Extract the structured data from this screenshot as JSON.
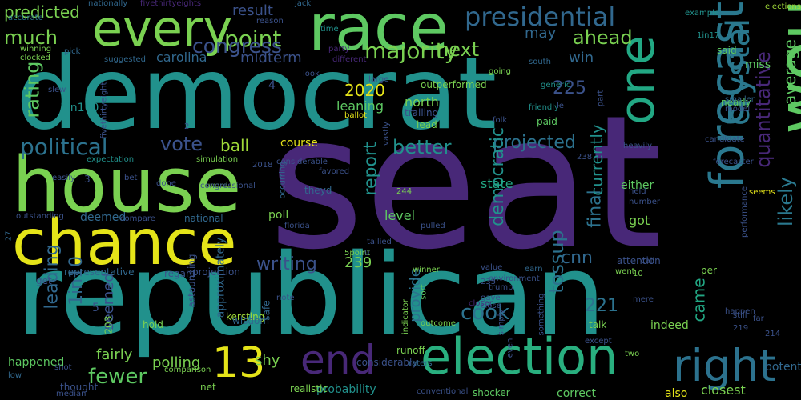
{
  "words": [
    {
      "text": "seat",
      "color": "#482878"
    },
    {
      "text": "republican",
      "color": "#21918c"
    },
    {
      "text": "democrat",
      "color": "#21918c"
    },
    {
      "text": "house",
      "color": "#7ad151"
    },
    {
      "text": "chance",
      "color": "#e5e419"
    },
    {
      "text": "would",
      "color": "#5ec962"
    },
    {
      "text": "race",
      "color": "#5ec962"
    },
    {
      "text": "election",
      "color": "#29af7f"
    },
    {
      "text": "every",
      "color": "#7ad151"
    },
    {
      "text": "forecast",
      "color": "#2a788e"
    },
    {
      "text": "one",
      "color": "#22a884"
    },
    {
      "text": "right",
      "color": "#2c728e"
    },
    {
      "text": "end",
      "color": "#482878"
    },
    {
      "text": "13",
      "color": "#e5e419"
    },
    {
      "text": "presidential",
      "color": "#31688e"
    },
    {
      "text": "crystal",
      "color": "#2a788e"
    },
    {
      "text": "point",
      "color": "#7ad151"
    },
    {
      "text": "majority",
      "color": "#7ad151"
    },
    {
      "text": "congress",
      "color": "#3b528b"
    },
    {
      "text": "ahead",
      "color": "#7ad151"
    },
    {
      "text": "next",
      "color": "#7ad151"
    },
    {
      "text": "much",
      "color": "#7ad151"
    },
    {
      "text": "political",
      "color": "#2c728e"
    },
    {
      "text": "vote",
      "color": "#3b528b"
    },
    {
      "text": "ball",
      "color": "#a0da39"
    },
    {
      "text": "better",
      "color": "#21918c"
    },
    {
      "text": "projected",
      "color": "#2c728e"
    },
    {
      "text": "quantitative",
      "color": "#482878"
    },
    {
      "text": "report",
      "color": "#21918c"
    },
    {
      "text": "democratic",
      "color": "#21918c"
    },
    {
      "text": "cook",
      "color": "#2c728e"
    },
    {
      "text": "tossup",
      "color": "#2c728e"
    },
    {
      "text": "writing",
      "color": "#3b528b"
    },
    {
      "text": "likely",
      "color": "#2a788e"
    },
    {
      "text": "came",
      "color": "#22a884"
    },
    {
      "text": "fewer",
      "color": "#5ec962"
    },
    {
      "text": "leading",
      "color": "#31688e"
    },
    {
      "text": "1in10",
      "color": "#31688e"
    },
    {
      "text": "rating",
      "color": "#5ec962"
    },
    {
      "text": "225",
      "color": "#3b528b"
    },
    {
      "text": "221",
      "color": "#2c728e"
    },
    {
      "text": "2020",
      "color": "#e5e419"
    },
    {
      "text": "cnn",
      "color": "#31688e"
    },
    {
      "text": "final",
      "color": "#2c728e"
    },
    {
      "text": "currently",
      "color": "#21918c"
    },
    {
      "text": "average",
      "color": "#5ec962"
    },
    {
      "text": "predicted",
      "color": "#7ad151"
    },
    {
      "text": "midterm",
      "color": "#3b528b"
    },
    {
      "text": "carolina",
      "color": "#31688e"
    },
    {
      "text": "result",
      "color": "#3b528b"
    },
    {
      "text": "may",
      "color": "#31688e"
    },
    {
      "text": "win",
      "color": "#31688e"
    },
    {
      "text": "miss",
      "color": "#5ec962"
    },
    {
      "text": "seemed",
      "color": "#3b528b"
    },
    {
      "text": "fairly",
      "color": "#7ad151"
    },
    {
      "text": "shy",
      "color": "#7ad151"
    },
    {
      "text": "polling",
      "color": "#7ad151"
    },
    {
      "text": "provide",
      "color": "#2c728e"
    },
    {
      "text": "state",
      "color": "#22a884"
    },
    {
      "text": "level",
      "color": "#5ec962"
    },
    {
      "text": "got",
      "color": "#7ad151"
    },
    {
      "text": "poll",
      "color": "#7ad151"
    },
    {
      "text": "north",
      "color": "#7ad151"
    },
    {
      "text": "leaning",
      "color": "#5ec962"
    },
    {
      "text": "course",
      "color": "#e5e419"
    },
    {
      "text": "probability",
      "color": "#21918c"
    },
    {
      "text": "1in100",
      "color": "#21918c"
    },
    {
      "text": "happened",
      "color": "#5ec962"
    },
    {
      "text": "approximately",
      "color": "#31688e"
    },
    {
      "text": "either",
      "color": "#5ec962"
    },
    {
      "text": "239",
      "color": "#7ad151"
    },
    {
      "text": "deemed",
      "color": "#31688e"
    },
    {
      "text": "national",
      "color": "#31688e"
    },
    {
      "text": "representative",
      "color": "#31688e"
    },
    {
      "text": "projection",
      "color": "#3b528b"
    },
    {
      "text": "regard",
      "color": "#3b528b"
    },
    {
      "text": "nationally",
      "color": "#31688e"
    },
    {
      "text": "fivethirtyeights",
      "color": "#482878"
    },
    {
      "text": "elections",
      "color": "#a0da39"
    },
    {
      "text": "accurate",
      "color": "#2c728e"
    },
    {
      "text": "winning",
      "color": "#7ad151"
    },
    {
      "text": "clocked",
      "color": "#7ad151"
    },
    {
      "text": "pick",
      "color": "#31688e"
    },
    {
      "text": "suggested",
      "color": "#31688e"
    },
    {
      "text": "party",
      "color": "#482878"
    },
    {
      "text": "different",
      "color": "#482878"
    },
    {
      "text": "outperformed",
      "color": "#7ad151"
    },
    {
      "text": "trailing",
      "color": "#3b528b"
    },
    {
      "text": "lead",
      "color": "#7ad151"
    },
    {
      "text": "ballot",
      "color": "#e5e419"
    },
    {
      "text": "going",
      "color": "#7ad151"
    },
    {
      "text": "south",
      "color": "#31688e"
    },
    {
      "text": "generic",
      "color": "#21918c"
    },
    {
      "text": "friendly",
      "color": "#21918c"
    },
    {
      "text": "paid",
      "color": "#5ec962"
    },
    {
      "text": "folk",
      "color": "#3b528b"
    },
    {
      "text": "said",
      "color": "#5ec962"
    },
    {
      "text": "nearly",
      "color": "#5ec962"
    },
    {
      "text": "model",
      "color": "#3b528b"
    },
    {
      "text": "smaller",
      "color": "#31688e"
    },
    {
      "text": "candidate",
      "color": "#3b528b"
    },
    {
      "text": "forecaster",
      "color": "#3b528b"
    },
    {
      "text": "performance",
      "color": "#3b528b"
    },
    {
      "text": "heavily",
      "color": "#3b528b"
    },
    {
      "text": "held",
      "color": "#3b528b"
    },
    {
      "text": "number",
      "color": "#3b528b"
    },
    {
      "text": "seems",
      "color": "#e5e419"
    },
    {
      "text": "example",
      "color": "#21918c"
    },
    {
      "text": "slew",
      "color": "#3b528b"
    },
    {
      "text": "fivethirtyeight",
      "color": "#3b528b"
    },
    {
      "text": "1in17",
      "color": "#21918c"
    },
    {
      "text": "large",
      "color": "#3b528b"
    },
    {
      "text": "look",
      "color": "#3b528b"
    },
    {
      "text": "jack",
      "color": "#31688e"
    },
    {
      "text": "reason",
      "color": "#3b528b"
    },
    {
      "text": "time",
      "color": "#21918c"
    },
    {
      "text": "simulation",
      "color": "#7ad151"
    },
    {
      "text": "expectation",
      "color": "#21918c"
    },
    {
      "text": "considerable",
      "color": "#3b528b"
    },
    {
      "text": "favored",
      "color": "#3b528b"
    },
    {
      "text": "easily",
      "color": "#3b528b"
    },
    {
      "text": "done",
      "color": "#3b528b"
    },
    {
      "text": "bet",
      "color": "#3b528b"
    },
    {
      "text": "2018",
      "color": "#3b528b"
    },
    {
      "text": "occurring",
      "color": "#31688e"
    },
    {
      "text": "theyd",
      "color": "#31688e"
    },
    {
      "text": "244",
      "color": "#7ad151"
    },
    {
      "text": "word",
      "color": "#7ad151"
    },
    {
      "text": "outstanding",
      "color": "#3b528b"
    },
    {
      "text": "compare",
      "color": "#3b528b"
    },
    {
      "text": "florida",
      "color": "#3b528b"
    },
    {
      "text": "pulled",
      "color": "#3b528b"
    },
    {
      "text": "tallied",
      "color": "#3b528b"
    },
    {
      "text": "5point",
      "color": "#7ad151"
    },
    {
      "text": "value",
      "color": "#3b528b"
    },
    {
      "text": "winner",
      "color": "#7ad151"
    },
    {
      "text": "trump",
      "color": "#3b528b"
    },
    {
      "text": "environment",
      "color": "#3b528b"
    },
    {
      "text": "sort",
      "color": "#5ec962"
    },
    {
      "text": "235",
      "color": "#3b528b"
    },
    {
      "text": "gave",
      "color": "#3b528b"
    },
    {
      "text": "closer",
      "color": "#482878"
    },
    {
      "text": "close",
      "color": "#3b528b"
    },
    {
      "text": "note",
      "color": "#3b528b"
    },
    {
      "text": "outcome",
      "color": "#7ad151"
    },
    {
      "text": "runoff",
      "color": "#7ad151"
    },
    {
      "text": "considerably",
      "color": "#3b528b"
    },
    {
      "text": "indicator",
      "color": "#7ad151"
    },
    {
      "text": "simply",
      "color": "#3b528b"
    },
    {
      "text": "except",
      "color": "#3b528b"
    },
    {
      "text": "even",
      "color": "#3b528b"
    },
    {
      "text": "raters",
      "color": "#31688e"
    },
    {
      "text": "conventional",
      "color": "#3b528b"
    },
    {
      "text": "shocker",
      "color": "#5ec962"
    },
    {
      "text": "correct",
      "color": "#5ec962"
    },
    {
      "text": "also",
      "color": "#e5e419"
    },
    {
      "text": "closest",
      "color": "#7ad151"
    },
    {
      "text": "potential",
      "color": "#31688e"
    },
    {
      "text": "still",
      "color": "#3b528b"
    },
    {
      "text": "219",
      "color": "#3b528b"
    },
    {
      "text": "214",
      "color": "#3b528b"
    },
    {
      "text": "happen",
      "color": "#3b528b"
    },
    {
      "text": "far",
      "color": "#3b528b"
    },
    {
      "text": "mere",
      "color": "#3b528b"
    },
    {
      "text": "two",
      "color": "#7ad151"
    },
    {
      "text": "indeed",
      "color": "#7ad151"
    },
    {
      "text": "talk",
      "color": "#7ad151"
    },
    {
      "text": "per",
      "color": "#7ad151"
    },
    {
      "text": "call",
      "color": "#3b528b"
    },
    {
      "text": "10",
      "color": "#7ad151"
    },
    {
      "text": "went",
      "color": "#7ad151"
    },
    {
      "text": "attention",
      "color": "#3b528b"
    },
    {
      "text": "earn",
      "color": "#31688e"
    },
    {
      "text": "low",
      "color": "#31688e"
    },
    {
      "text": "shot",
      "color": "#3b528b"
    },
    {
      "text": "median",
      "color": "#3b528b"
    },
    {
      "text": "thought",
      "color": "#3b528b"
    },
    {
      "text": "comparison",
      "color": "#7ad151"
    },
    {
      "text": "net",
      "color": "#7ad151"
    },
    {
      "text": "realistic",
      "color": "#7ad151"
    },
    {
      "text": "hold",
      "color": "#7ad151"
    },
    {
      "text": "203",
      "color": "#7ad151"
    },
    {
      "text": "kersting",
      "color": "#a0da39"
    },
    {
      "text": "wisdom",
      "color": "#31688e"
    },
    {
      "text": "safe",
      "color": "#31688e"
    },
    {
      "text": "astounding",
      "color": "#3b528b"
    },
    {
      "text": "get",
      "color": "#3b528b"
    },
    {
      "text": "27",
      "color": "#31688e"
    },
    {
      "text": "7",
      "color": "#3b528b"
    },
    {
      "text": "5",
      "color": "#3b528b"
    },
    {
      "text": "4",
      "color": "#3b528b"
    },
    {
      "text": "3",
      "color": "#3b528b"
    },
    {
      "text": "2",
      "color": "#3b528b"
    },
    {
      "text": "0",
      "color": "#3b528b"
    },
    {
      "text": "238",
      "color": "#3b528b"
    },
    {
      "text": "congressional",
      "color": "#3b528b"
    },
    {
      "text": "vastly",
      "color": "#3b528b"
    },
    {
      "text": "something",
      "color": "#3b528b"
    },
    {
      "text": "part",
      "color": "#3b528b"
    },
    {
      "text": "le",
      "color": "#3b528b"
    }
  ]
}
